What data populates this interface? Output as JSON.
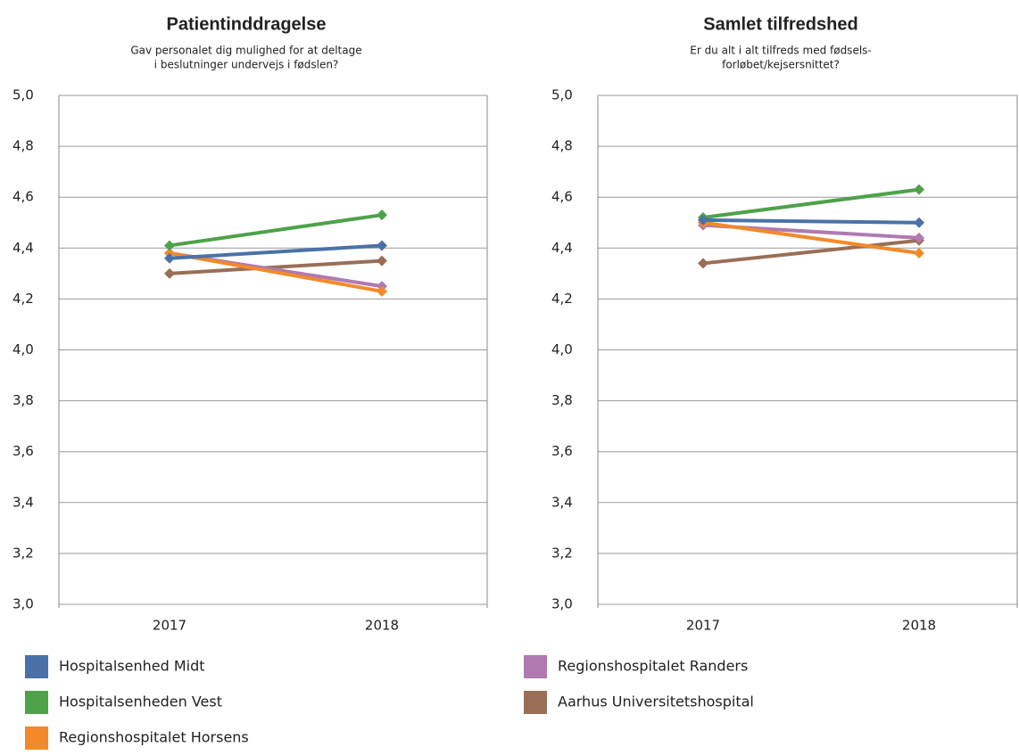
{
  "legend": [
    {
      "name": "Hospitalsenhed Midt",
      "color": "#4a72a8"
    },
    {
      "name": "Hospitalsenheden Vest",
      "color": "#4ea24a"
    },
    {
      "name": "Regionshospitalet Horsens",
      "color": "#f28a2a"
    },
    {
      "name": "Regionshospitalet Randers",
      "color": "#b07ab0"
    },
    {
      "name": "Aarhus Universitetshospital",
      "color": "#9a6e56"
    }
  ],
  "chart_data": [
    {
      "type": "line",
      "title": "Patientinddragelse",
      "subtitle": [
        "Gav personalet dig mulighed for at deltage",
        "i beslutninger undervejs i fødslen?"
      ],
      "categories": [
        "2017",
        "2018"
      ],
      "series": [
        {
          "values": [
            4.36,
            4.41
          ]
        },
        {
          "values": [
            4.41,
            4.53
          ]
        },
        {
          "values": [
            4.38,
            4.23
          ]
        },
        {
          "values": [
            4.38,
            4.25
          ]
        },
        {
          "values": [
            4.3,
            4.35
          ]
        }
      ],
      "ylim": [
        3.0,
        5.0
      ],
      "yticks": [
        {
          "value": 3.0,
          "label": "3,0"
        },
        {
          "value": 3.2,
          "label": "3,2"
        },
        {
          "value": 3.4,
          "label": "3,4"
        },
        {
          "value": 3.6,
          "label": "3,6"
        },
        {
          "value": 3.8,
          "label": "3,8"
        },
        {
          "value": 4.0,
          "label": "4,0"
        },
        {
          "value": 4.2,
          "label": "4,2"
        },
        {
          "value": 4.4,
          "label": "4,4"
        },
        {
          "value": 4.6,
          "label": "4,6"
        },
        {
          "value": 4.8,
          "label": "4,8"
        },
        {
          "value": 5.0,
          "label": "5,0"
        }
      ],
      "grid": true
    },
    {
      "type": "line",
      "title": "Samlet tilfredshed",
      "subtitle": [
        "Er du alt i alt tilfreds med fødsels-",
        "forløbet/kejsersnittet?"
      ],
      "categories": [
        "2017",
        "2018"
      ],
      "series": [
        {
          "values": [
            4.51,
            4.5
          ]
        },
        {
          "values": [
            4.52,
            4.63
          ]
        },
        {
          "values": [
            4.5,
            4.38
          ]
        },
        {
          "values": [
            4.49,
            4.44
          ]
        },
        {
          "values": [
            4.34,
            4.43
          ]
        }
      ],
      "ylim": [
        3.0,
        5.0
      ],
      "yticks": [
        {
          "value": 3.0,
          "label": "3,0"
        },
        {
          "value": 3.2,
          "label": "3,2"
        },
        {
          "value": 3.4,
          "label": "3,4"
        },
        {
          "value": 3.6,
          "label": "3,6"
        },
        {
          "value": 3.8,
          "label": "3,8"
        },
        {
          "value": 4.0,
          "label": "4,0"
        },
        {
          "value": 4.2,
          "label": "4,2"
        },
        {
          "value": 4.4,
          "label": "4,4"
        },
        {
          "value": 4.6,
          "label": "4,6"
        },
        {
          "value": 4.8,
          "label": "4,8"
        },
        {
          "value": 5.0,
          "label": "5,0"
        }
      ],
      "grid": true
    }
  ]
}
